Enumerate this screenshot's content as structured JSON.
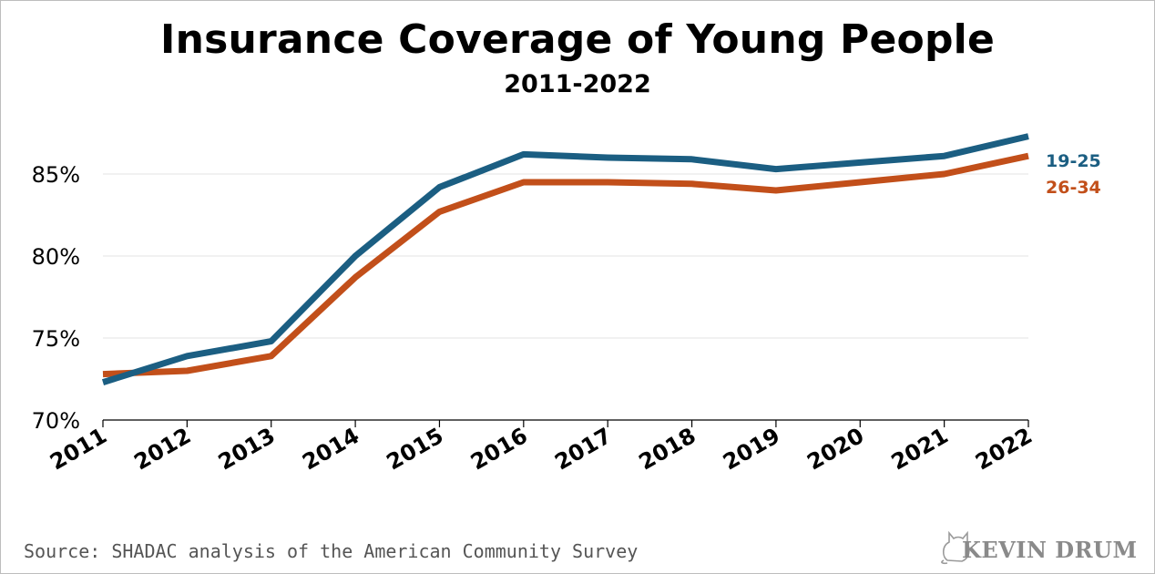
{
  "chart_data": {
    "type": "line",
    "title": "Insurance Coverage of Young People",
    "subtitle": "2011-2022",
    "categories": [
      "2011",
      "2012",
      "2013",
      "2014",
      "2015",
      "2016",
      "2017",
      "2018",
      "2019",
      "2020",
      "2021",
      "2022"
    ],
    "series": [
      {
        "name": "19-25",
        "color": "#1b5e82",
        "values": [
          72.3,
          73.9,
          74.8,
          80.0,
          84.2,
          86.2,
          86.0,
          85.9,
          85.3,
          85.7,
          86.1,
          87.3
        ]
      },
      {
        "name": "26-34",
        "color": "#c24f1a",
        "values": [
          72.8,
          73.0,
          73.9,
          78.7,
          82.7,
          84.5,
          84.5,
          84.4,
          84.0,
          84.5,
          85.0,
          86.1
        ]
      }
    ],
    "y_ticks": [
      "70%",
      "75%",
      "80%",
      "85%"
    ],
    "y_tick_values": [
      70,
      75,
      80,
      85
    ],
    "ylim": [
      70,
      88
    ],
    "xlabel": "",
    "ylabel": "",
    "grid": true,
    "legend_placement": "right-end-of-lines"
  },
  "source": "Source: SHADAC analysis of the American Community Survey",
  "logo_text": "KEVIN DRUM"
}
